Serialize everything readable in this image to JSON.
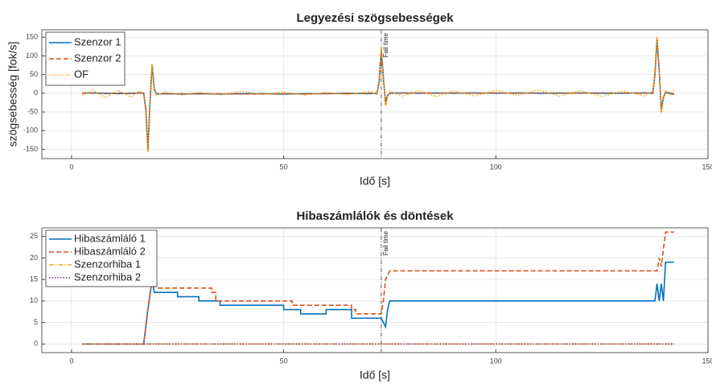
{
  "chart_data": [
    {
      "type": "line",
      "title": "Legyezési szögsebességek",
      "xlabel": "Idő [s]",
      "ylabel": "szögsebesség [fok/s]",
      "xlim": [
        -7,
        150
      ],
      "ylim": [
        -175,
        170
      ],
      "xticks": [
        0,
        50,
        100,
        150
      ],
      "yticks": [
        -150,
        -100,
        -50,
        0,
        50,
        100,
        150
      ],
      "grid": true,
      "legend": "upper left",
      "vline": {
        "x": 73,
        "label": "Fail time"
      },
      "x": [
        2.5,
        5,
        8,
        11,
        14,
        16,
        17,
        17.5,
        18,
        18.5,
        19,
        19.5,
        20,
        22,
        26,
        30,
        35,
        40,
        45,
        50,
        55,
        60,
        65,
        70,
        72,
        72.5,
        73,
        73.5,
        74,
        74.5,
        75,
        78,
        82,
        86,
        90,
        95,
        100,
        105,
        110,
        115,
        120,
        125,
        130,
        135,
        137,
        137.5,
        138,
        138.5,
        139,
        139.5,
        140,
        141,
        142
      ],
      "series": [
        {
          "name": "Szenzor 1",
          "color": "#0072bd",
          "dash": "solid",
          "values": [
            0,
            1,
            0,
            -1,
            0,
            1,
            0,
            -40,
            -150,
            -20,
            75,
            10,
            -2,
            -1,
            -2,
            -1,
            -2,
            -1,
            -1,
            -2,
            -1,
            -1,
            0,
            -1,
            0,
            30,
            115,
            40,
            -25,
            -5,
            0,
            1,
            0,
            1,
            0,
            1,
            0,
            1,
            0,
            0,
            1,
            0,
            0,
            1,
            0,
            50,
            145,
            60,
            -45,
            -10,
            2,
            0,
            -3
          ]
        },
        {
          "name": "Szenzor 2",
          "color": "#d95319",
          "dash": "dashed",
          "values": [
            1,
            0,
            -1,
            1,
            -1,
            0,
            1,
            -45,
            -155,
            -25,
            78,
            12,
            -1,
            -2,
            -1,
            -2,
            -1,
            -2,
            -2,
            -1,
            -2,
            -1,
            -1,
            0,
            1,
            35,
            120,
            45,
            -30,
            -6,
            1,
            0,
            1,
            0,
            1,
            0,
            1,
            0,
            1,
            1,
            0,
            1,
            1,
            0,
            1,
            55,
            150,
            65,
            -50,
            -12,
            3,
            1,
            -2
          ]
        },
        {
          "name": "OF",
          "color": "#edb120",
          "dash": "dotted",
          "values": [
            -6,
            9,
            -12,
            8,
            -10,
            7,
            -5,
            -50,
            -158,
            -30,
            78,
            14,
            -6,
            4,
            -5,
            3,
            -4,
            5,
            -3,
            4,
            -5,
            3,
            -4,
            5,
            -3,
            38,
            125,
            48,
            -35,
            -9,
            6,
            -8,
            7,
            -9,
            6,
            -7,
            8,
            -6,
            9,
            -8,
            7,
            -9,
            6,
            -7,
            5,
            58,
            152,
            68,
            -52,
            -14,
            8,
            -6,
            10
          ]
        }
      ]
    },
    {
      "type": "line",
      "title": "Hibaszámlálók és döntések",
      "xlabel": "Idő [s]",
      "xlim": [
        -7,
        150
      ],
      "ylim": [
        -2,
        27
      ],
      "xticks": [
        0,
        50,
        100,
        150
      ],
      "yticks": [
        0,
        5,
        10,
        15,
        20,
        25
      ],
      "grid": true,
      "legend": "upper left",
      "vline": {
        "x": 73,
        "label": "Fail time"
      },
      "series": [
        {
          "name": "Hibaszámláló 1",
          "color": "#0072bd",
          "dash": "solid",
          "x": [
            2.5,
            17,
            18,
            19,
            19.5,
            25,
            25,
            30,
            30,
            35,
            35,
            50,
            50,
            54,
            54,
            60,
            60,
            66,
            66,
            73,
            73.5,
            74,
            74.5,
            75,
            137,
            137.5,
            138,
            138.5,
            139,
            139.5,
            140,
            142
          ],
          "values": [
            0,
            0,
            8,
            15,
            12,
            12,
            11,
            11,
            10,
            10,
            9,
            9,
            8,
            8,
            7,
            7,
            8,
            8,
            6,
            6,
            5,
            4,
            8,
            10,
            10,
            10,
            14,
            10,
            14,
            10,
            19,
            19
          ]
        },
        {
          "name": "Hibaszámláló 2",
          "color": "#d95319",
          "dash": "dashed",
          "x": [
            2.5,
            17,
            18,
            19,
            20,
            33,
            33,
            34,
            34,
            52,
            52,
            66,
            66,
            67,
            67,
            73,
            73.5,
            74,
            74.5,
            75,
            138,
            138.5,
            139,
            139.5,
            140,
            142
          ],
          "values": [
            0,
            0,
            8,
            15,
            13,
            13,
            12,
            12,
            10,
            10,
            9,
            9,
            8,
            8,
            7,
            7,
            10,
            15,
            16,
            17,
            17,
            20,
            18,
            22,
            26,
            26
          ]
        },
        {
          "name": "Szenzorhiba 1",
          "color": "#edb120",
          "dash": "dashdot",
          "x": [
            2.5,
            142
          ],
          "values": [
            0,
            0
          ]
        },
        {
          "name": "Szenzorhiba 2",
          "color": "#7e2f8e",
          "dash": "dotted",
          "x": [
            2.5,
            142
          ],
          "values": [
            0,
            0
          ]
        }
      ]
    }
  ]
}
